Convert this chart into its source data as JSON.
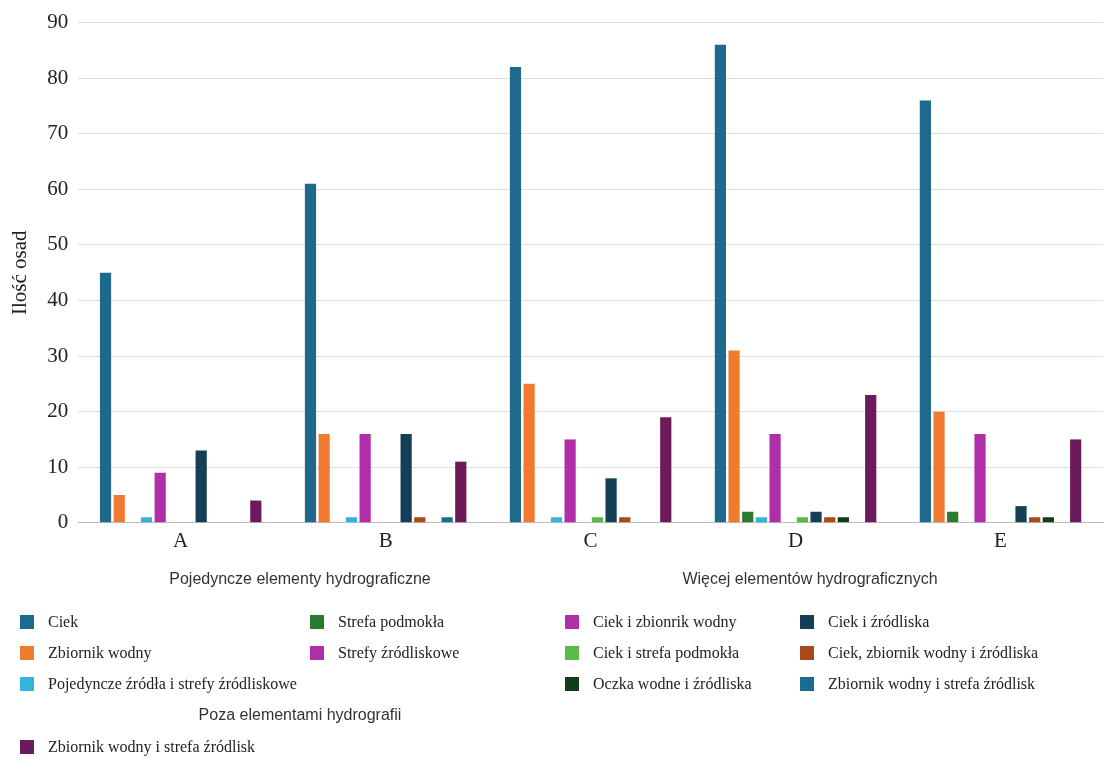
{
  "chart_data": {
    "type": "bar",
    "ylabel": "Ilość osad",
    "categories": [
      "A",
      "B",
      "C",
      "D",
      "E"
    ],
    "ylim": [
      0,
      90
    ],
    "yticks": [
      0,
      10,
      20,
      30,
      40,
      50,
      60,
      70,
      80,
      90
    ],
    "grid": "y",
    "legend": "bottom",
    "annotations": [
      "Pojedyncze elementy hydrograficzne",
      "Więcej elementów hydrograficznych",
      "Poza elementami hydrografii"
    ],
    "series": [
      {
        "name": "Ciek",
        "color": "#1f6a8c",
        "values": [
          45,
          61,
          82,
          86,
          76
        ]
      },
      {
        "name": "Zbiornik wodny",
        "color": "#f07a2e",
        "values": [
          5,
          16,
          25,
          31,
          20
        ]
      },
      {
        "name": "Pojedyncze źródła i strefy źródliskowe",
        "color": "#35b3d8",
        "values": [
          1,
          1,
          1,
          1,
          null
        ]
      },
      {
        "name": "Strefa podmokła",
        "color": "#2a7a2f",
        "values": [
          null,
          null,
          null,
          2,
          2
        ]
      },
      {
        "name": "Strefy źródliskowe",
        "color": "#b02fa8",
        "values": [
          9,
          16,
          15,
          16,
          16
        ]
      },
      {
        "name": "Ciek i zbionrik wodny",
        "color": "#b02fa8",
        "values": [
          null,
          null,
          null,
          null,
          null
        ]
      },
      {
        "name": "Ciek i źródliska",
        "color": "#143f56",
        "values": [
          13,
          16,
          8,
          2,
          3
        ]
      },
      {
        "name": "Ciek i strefa podmokła",
        "color": "#5ab948",
        "values": [
          null,
          null,
          1,
          1,
          null
        ]
      },
      {
        "name": "Ciek, zbiornik wodny i źródliska",
        "color": "#a84a1a",
        "values": [
          null,
          1,
          1,
          1,
          1
        ]
      },
      {
        "name": "Oczka wodne i źródliska",
        "color": "#0f3d1a",
        "values": [
          null,
          null,
          null,
          1,
          1
        ]
      },
      {
        "name": "Zbiornik wodny i strefa źródlisk",
        "color": "#1a6d92",
        "values": [
          null,
          1,
          null,
          null,
          null
        ]
      },
      {
        "name": "Zbiornik wodny i strefa źródlisk",
        "color": "#6b1a5a",
        "values": [
          4,
          11,
          19,
          23,
          15
        ]
      }
    ]
  }
}
